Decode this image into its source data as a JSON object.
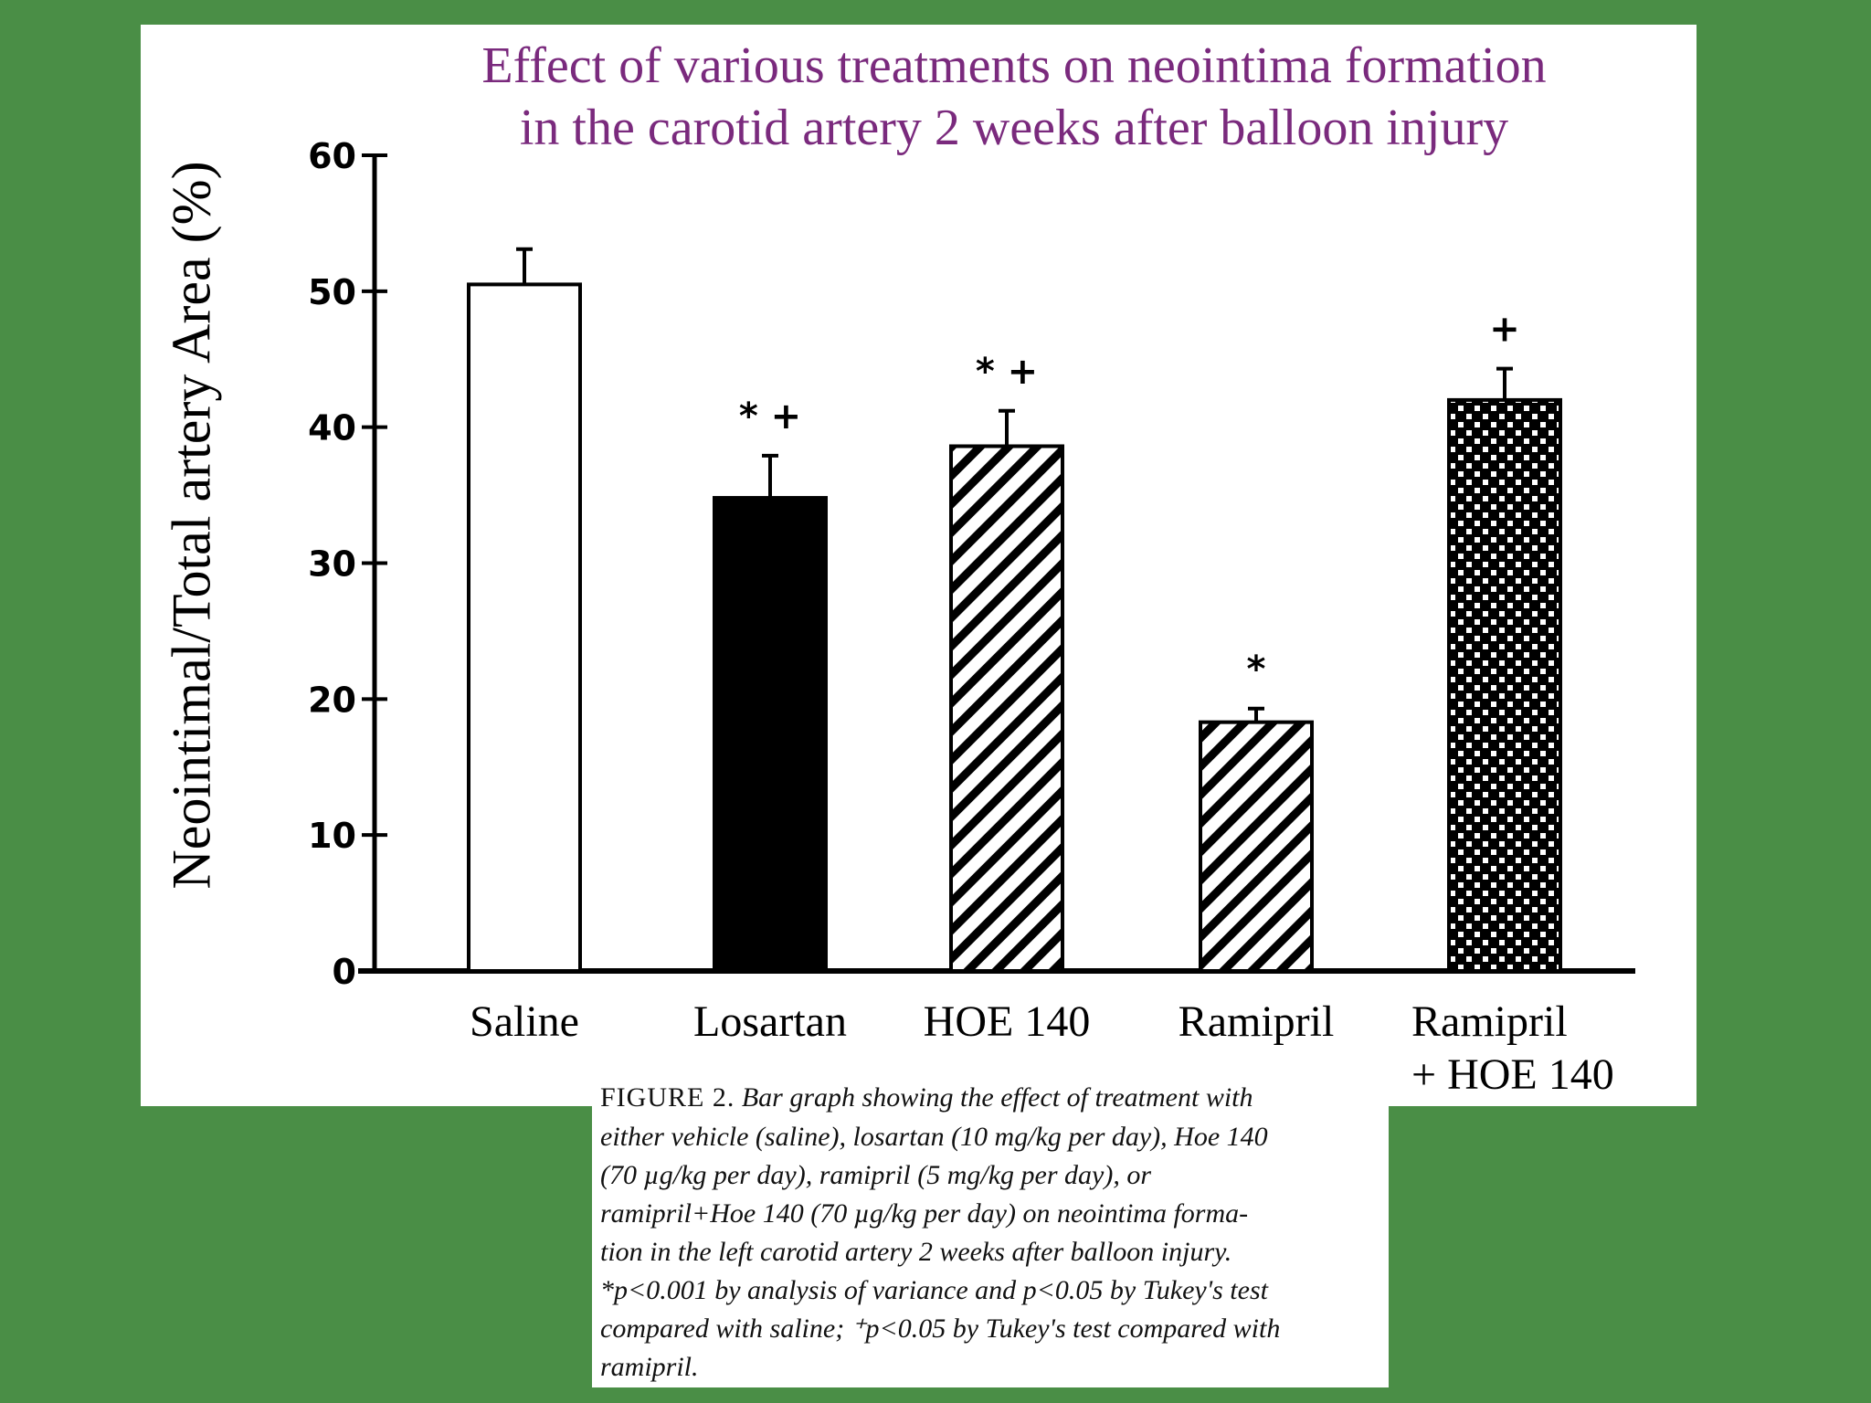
{
  "chart_data": {
    "type": "bar",
    "title_lines": [
      "Effect of various treatments on neointima formation",
      "in the carotid artery 2 weeks after  balloon injury"
    ],
    "ylabel": "Neointimal/Total artery Area (%)",
    "xlabel": "",
    "ylim": [
      0,
      60
    ],
    "yticks": [
      0,
      10,
      20,
      30,
      40,
      50,
      60
    ],
    "categories": [
      [
        "Saline"
      ],
      [
        "Losartan"
      ],
      [
        "HOE 140"
      ],
      [
        "Ramipril"
      ],
      [
        "Ramipril",
        "+ HOE 140"
      ]
    ],
    "values": [
      50.5,
      34.8,
      38.6,
      18.3,
      42.0
    ],
    "error": [
      2.6,
      3.1,
      2.6,
      1.0,
      2.3
    ],
    "significance": [
      "",
      "* +",
      "* +",
      "*",
      "+"
    ],
    "patterns": [
      "white",
      "black",
      "diagonal-hatch",
      "diagonal-hatch",
      "checker"
    ],
    "grid": false
  },
  "caption": {
    "lead": "FIGURE 2.",
    "lines": [
      " Bar graph showing the effect of treatment with",
      "either vehicle (saline), losartan (10 mg/kg per day), Hoe 140",
      "(70 µg/kg per day), ramipril (5 mg/kg per day), or",
      "ramipril+Hoe 140 (70 µg/kg per day) on neointima forma-",
      "tion in the left carotid artery 2 weeks after balloon injury.",
      "*p<0.001 by analysis of variance and p<0.05 by Tukey's test",
      "compared with saline; ⁺p<0.05 by Tukey's test compared with",
      "ramipril."
    ]
  },
  "colors": {
    "background": "#4a8e46",
    "panel": "#ffffff",
    "title": "#7a2a7d",
    "ink": "#000000"
  }
}
